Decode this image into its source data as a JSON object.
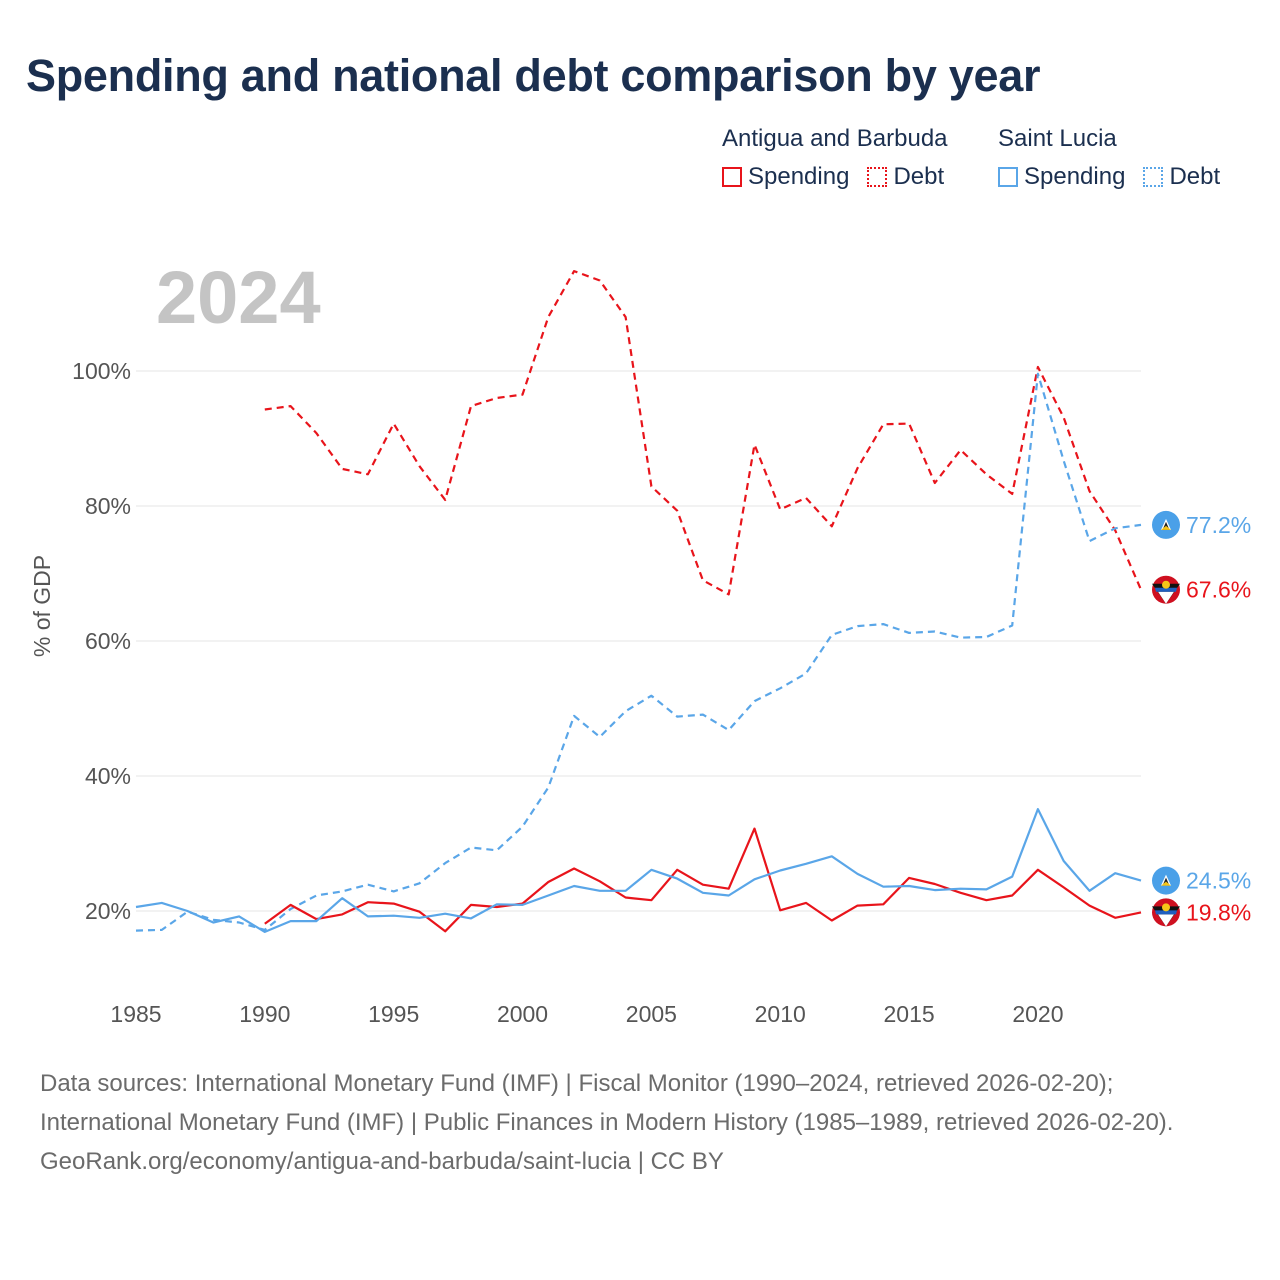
{
  "chart_data": {
    "type": "line",
    "title": "Spending and national debt comparison by year",
    "year_label": "2024",
    "ylabel": "% of GDP",
    "xlabel": "",
    "xlim": [
      1985,
      2024
    ],
    "ylim": [
      10,
      115
    ],
    "x_ticks": [
      1985,
      1990,
      1995,
      2000,
      2005,
      2010,
      2015,
      2020
    ],
    "x_tick_labels": [
      "1985",
      "1990",
      "1995",
      "2000",
      "2005",
      "2010",
      "2015",
      "2020"
    ],
    "y_ticks": [
      20,
      40,
      60,
      80,
      100
    ],
    "y_tick_labels": [
      "20%",
      "40%",
      "60%",
      "80%",
      "100%"
    ],
    "grid": true,
    "legend": {
      "position": "top-right",
      "groups": [
        {
          "title": "Antigua and Barbuda",
          "items": [
            "Spending",
            "Debt"
          ],
          "color": "#e8141b"
        },
        {
          "title": "Saint Lucia",
          "items": [
            "Spending",
            "Debt"
          ],
          "color": "#5aa6e8"
        }
      ]
    },
    "series": [
      {
        "name": "Antigua and Barbuda Debt",
        "country": "Antigua and Barbuda",
        "metric": "Debt",
        "color": "#e8141b",
        "dash": true,
        "end_label": "67.6%",
        "x": [
          1990,
          1991,
          1992,
          1993,
          1994,
          1995,
          1996,
          1997,
          1998,
          1999,
          2000,
          2001,
          2002,
          2003,
          2004,
          2005,
          2006,
          2007,
          2008,
          2009,
          2010,
          2011,
          2012,
          2013,
          2014,
          2015,
          2016,
          2017,
          2018,
          2019,
          2020,
          2021,
          2022,
          2023,
          2024
        ],
        "values": [
          94.3,
          94.8,
          90.8,
          85.5,
          84.7,
          92.2,
          85.9,
          80.9,
          94.8,
          96.0,
          96.5,
          108.0,
          114.8,
          113.4,
          108.0,
          82.9,
          79.3,
          69.0,
          66.9,
          89.1,
          79.5,
          81.2,
          77.0,
          85.6,
          92.1,
          92.2,
          83.4,
          88.3,
          84.7,
          81.8,
          100.6,
          93.1,
          82.2,
          76.4,
          67.6
        ]
      },
      {
        "name": "Saint Lucia Debt",
        "country": "Saint Lucia",
        "metric": "Debt",
        "color": "#5aa6e8",
        "dash": true,
        "end_label": "77.2%",
        "x": [
          1985,
          1986,
          1987,
          1988,
          1989,
          1990,
          1991,
          1992,
          1993,
          1994,
          1995,
          1996,
          1997,
          1998,
          1999,
          2000,
          2001,
          2002,
          2003,
          2004,
          2005,
          2006,
          2007,
          2008,
          2009,
          2010,
          2011,
          2012,
          2013,
          2014,
          2015,
          2016,
          2017,
          2018,
          2019,
          2020,
          2021,
          2022,
          2023,
          2024
        ],
        "values": [
          17.1,
          17.2,
          19.9,
          18.7,
          18.3,
          17.2,
          20.3,
          22.3,
          22.9,
          23.9,
          22.9,
          24.1,
          27.1,
          29.4,
          29.0,
          32.5,
          38.3,
          48.9,
          45.8,
          49.6,
          51.9,
          48.8,
          49.1,
          46.8,
          51.1,
          53.0,
          55.2,
          60.9,
          62.2,
          62.5,
          61.2,
          61.4,
          60.5,
          60.6,
          62.3,
          99.6,
          86.7,
          74.8,
          76.7,
          77.2
        ]
      },
      {
        "name": "Antigua and Barbuda Spending",
        "country": "Antigua and Barbuda",
        "metric": "Spending",
        "color": "#e8141b",
        "dash": false,
        "end_label": "19.8%",
        "x": [
          1990,
          1991,
          1992,
          1993,
          1994,
          1995,
          1996,
          1997,
          1998,
          1999,
          2000,
          2001,
          2002,
          2003,
          2004,
          2005,
          2006,
          2007,
          2008,
          2009,
          2010,
          2011,
          2012,
          2013,
          2014,
          2015,
          2016,
          2017,
          2018,
          2019,
          2020,
          2021,
          2022,
          2023,
          2024
        ],
        "values": [
          18.1,
          20.9,
          18.8,
          19.5,
          21.3,
          21.1,
          19.9,
          17.0,
          20.9,
          20.6,
          21.1,
          24.3,
          26.3,
          24.4,
          22.0,
          21.6,
          26.1,
          23.9,
          23.3,
          32.2,
          20.1,
          21.2,
          18.6,
          20.8,
          21.0,
          24.9,
          24.0,
          22.7,
          21.6,
          22.3,
          26.1,
          23.5,
          20.8,
          19.0,
          19.8
        ]
      },
      {
        "name": "Saint Lucia Spending",
        "country": "Saint Lucia",
        "metric": "Spending",
        "color": "#5aa6e8",
        "dash": false,
        "end_label": "24.5%",
        "x": [
          1985,
          1986,
          1987,
          1988,
          1989,
          1990,
          1991,
          1992,
          1993,
          1994,
          1995,
          1996,
          1997,
          1998,
          1999,
          2000,
          2001,
          2002,
          2003,
          2004,
          2005,
          2006,
          2007,
          2008,
          2009,
          2010,
          2011,
          2012,
          2013,
          2014,
          2015,
          2016,
          2017,
          2018,
          2019,
          2020,
          2021,
          2022,
          2023,
          2024
        ],
        "values": [
          20.6,
          21.2,
          20.0,
          18.3,
          19.2,
          16.9,
          18.5,
          18.5,
          21.9,
          19.2,
          19.3,
          19.0,
          19.6,
          18.9,
          21.0,
          20.9,
          22.3,
          23.7,
          23.0,
          23.0,
          26.1,
          24.8,
          22.7,
          22.3,
          24.7,
          26.0,
          27.0,
          28.1,
          25.5,
          23.6,
          23.7,
          23.1,
          23.3,
          23.2,
          25.1,
          35.1,
          27.4,
          23.0,
          25.6,
          24.5
        ]
      }
    ]
  },
  "legend": {
    "groups": [
      {
        "title": "Antigua and Barbuda",
        "spending_label": "Spending",
        "debt_label": "Debt",
        "color": "#e8141b"
      },
      {
        "title": "Saint Lucia",
        "spending_label": "Spending",
        "debt_label": "Debt",
        "color": "#5aa6e8"
      }
    ]
  },
  "footer": {
    "sources": "Data sources: International Monetary Fund (IMF) | Fiscal Monitor (1990–2024, retrieved 2026-02-20); International Monetary Fund (IMF) | Public Finances in Modern History (1985–1989, retrieved 2026-02-20).",
    "credit": "GeoRank.org/economy/antigua-and-barbuda/saint-lucia | CC BY"
  },
  "flags": {
    "antigua": "antigua-and-barbuda-flag-icon",
    "saint_lucia": "saint-lucia-flag-icon"
  }
}
